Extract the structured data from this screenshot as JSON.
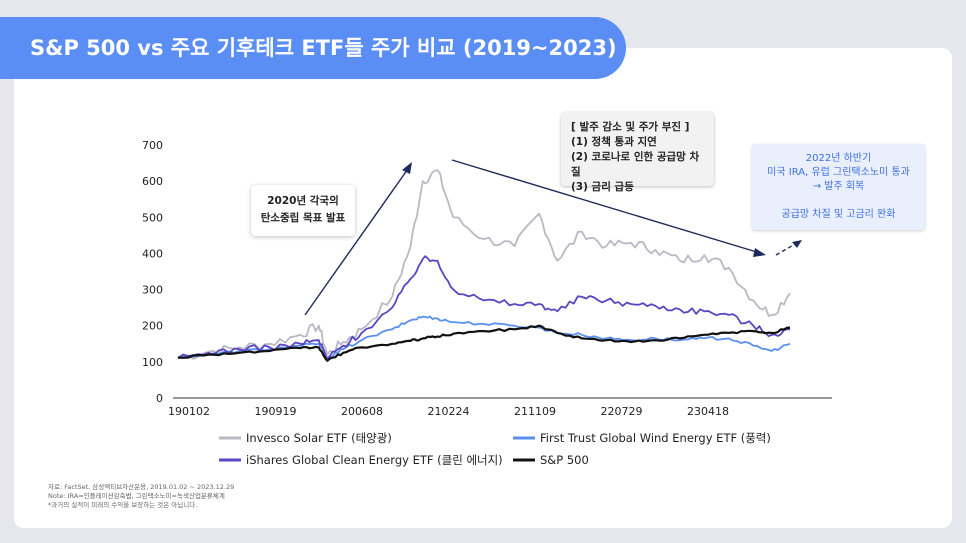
{
  "title": "S&P 500 vs 주요 기후테크 ETF들 주가 비교 (2019~2023)",
  "colors": {
    "background": "#e6e7ec",
    "title_pill": "#5b8ef5",
    "solar": "#b9b9c6",
    "wind": "#5a8ff0",
    "clean": "#5a46c2",
    "sp500": "#111111",
    "blue_note_text": "#3f6fe0"
  },
  "annotations": {
    "carbon_neutral": [
      "2020년 각국의",
      "탄소중립 목표 발표"
    ],
    "decline_title": "[ 발주 감소 및 주가 부진 ]",
    "decline_items": [
      "(1) 정책 통과 지연",
      "(2) 코로나로 인한 공급망 차질",
      "(3) 금리 급등"
    ],
    "recovery": [
      "2022년 하반기",
      "미국 IRA, 유럽 그린택소노미 통과",
      "→ 발주 회복",
      "",
      "공급망 차질 및 고금리 완화"
    ]
  },
  "footnotes": [
    "자료: FactSet, 삼성액티브자산운용, 2019.01.02 ~ 2023.12.29",
    "Note: IRA=인플레이션감축법, 그린택소노미=녹색산업분류체계",
    "*과거의 실적이 미래의 수익을 보장하는 것은 아닙니다."
  ],
  "chart_data": {
    "type": "line",
    "title": "S&P 500 vs 주요 기후테크 ETF들 주가 비교 (2019~2023)",
    "xlabel": "",
    "ylabel": "",
    "ylim": [
      0,
      700
    ],
    "yticks": [
      0,
      100,
      200,
      300,
      400,
      500,
      600,
      700
    ],
    "x_tick_labels": [
      "190102",
      "190919",
      "200608",
      "210224",
      "211109",
      "220729",
      "230418"
    ],
    "grid": false,
    "legend_position": "bottom",
    "x": [
      2019.0,
      2019.25,
      2019.5,
      2019.75,
      2020.0,
      2020.15,
      2020.22,
      2020.35,
      2020.5,
      2020.75,
      2020.9,
      2021.0,
      2021.12,
      2021.25,
      2021.5,
      2021.75,
      2021.95,
      2022.1,
      2022.3,
      2022.5,
      2022.7,
      2022.9,
      2023.1,
      2023.3,
      2023.5,
      2023.7,
      2023.85,
      2024.0
    ],
    "series": [
      {
        "name": "Invesco Solar ETF (태양광)",
        "color": "#b9b9c6",
        "values": [
          110,
          128,
          140,
          150,
          175,
          200,
          120,
          155,
          190,
          280,
          420,
          600,
          630,
          500,
          440,
          420,
          510,
          380,
          460,
          420,
          430,
          410,
          380,
          395,
          360,
          270,
          230,
          290
        ]
      },
      {
        "name": "First Trust Global Wind Energy ETF (풍력)",
        "color": "#5a8ff0",
        "values": [
          112,
          120,
          130,
          135,
          145,
          150,
          110,
          135,
          160,
          190,
          215,
          225,
          220,
          210,
          205,
          200,
          195,
          180,
          175,
          165,
          160,
          165,
          160,
          165,
          165,
          145,
          130,
          150
        ]
      },
      {
        "name": "iShares Global Clean Energy ETF (클린 에너지)",
        "color": "#5a46c2",
        "values": [
          110,
          125,
          135,
          140,
          150,
          160,
          110,
          145,
          180,
          250,
          330,
          385,
          380,
          300,
          270,
          260,
          260,
          240,
          280,
          270,
          260,
          255,
          245,
          240,
          230,
          200,
          175,
          190
        ]
      },
      {
        "name": "S&P 500",
        "color": "#111111",
        "values": [
          112,
          120,
          125,
          130,
          138,
          140,
          103,
          125,
          140,
          150,
          158,
          165,
          170,
          178,
          185,
          190,
          200,
          180,
          165,
          160,
          155,
          160,
          165,
          175,
          180,
          185,
          180,
          195
        ]
      }
    ]
  }
}
